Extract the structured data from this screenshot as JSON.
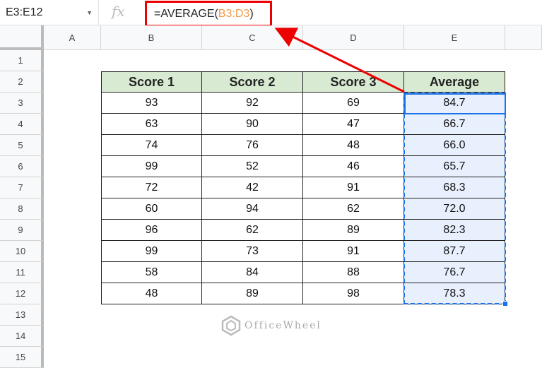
{
  "name_box": "E3:E12",
  "fx_label": "fx",
  "formula": {
    "prefix": "=AVERAGE(",
    "ref": "B3:D3",
    "suffix": ")"
  },
  "columns": [
    "A",
    "B",
    "C",
    "D",
    "E"
  ],
  "rows": [
    "1",
    "2",
    "3",
    "4",
    "5",
    "6",
    "7",
    "8",
    "9",
    "10",
    "11",
    "12",
    "13",
    "14",
    "15"
  ],
  "table": {
    "headers": [
      "Score 1",
      "Score 2",
      "Score 3",
      "Average"
    ],
    "data": [
      [
        "93",
        "92",
        "69",
        "84.7"
      ],
      [
        "63",
        "90",
        "47",
        "66.7"
      ],
      [
        "74",
        "76",
        "48",
        "66.0"
      ],
      [
        "99",
        "52",
        "46",
        "65.7"
      ],
      [
        "72",
        "42",
        "91",
        "68.3"
      ],
      [
        "60",
        "94",
        "62",
        "72.0"
      ],
      [
        "96",
        "62",
        "89",
        "82.3"
      ],
      [
        "99",
        "73",
        "91",
        "87.7"
      ],
      [
        "58",
        "84",
        "88",
        "76.7"
      ],
      [
        "48",
        "89",
        "98",
        "78.3"
      ]
    ]
  },
  "watermark": "OfficeWheel",
  "colors": {
    "annotation": "#ee0000",
    "selection": "#1a73e8",
    "header_fill": "#d9ead3",
    "ref": "#f29a4a"
  }
}
